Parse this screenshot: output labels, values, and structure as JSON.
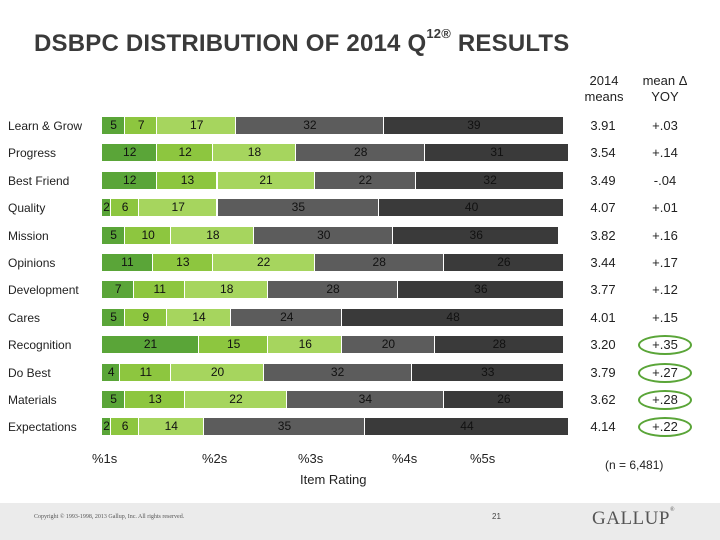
{
  "page": {
    "title": "DSBPC DISTRIBUTION OF 2014 Q",
    "title_sup": "12",
    "title_reg": "®",
    "title_end": " RESULTS",
    "col_means": "2014 means",
    "col_yoy": "mean Δ YOY",
    "xlabel": "Item Rating",
    "n_note": "(n = 6,481)",
    "copyright": "Copyright © 1993-1998, 2013 Gallup, Inc. All rights reserved.",
    "page_number": "21",
    "logo": "GALLUP",
    "logo_mark": "®"
  },
  "colors": {
    "s1": "#5aa538",
    "s2": "#8dc63f",
    "s3": "#a6d55e",
    "s4": "#5c5c5c",
    "s5": "#3a3a3a",
    "highlight": "#5aa538"
  },
  "chart_data": {
    "type": "bar",
    "stacked": true,
    "orientation": "horizontal",
    "series_names": [
      "%1s",
      "%2s",
      "%3s",
      "%4s",
      "%5s"
    ],
    "x_tick_labels": [
      "%1s",
      "%2s",
      "%3s",
      "%4s",
      "%5s"
    ],
    "xlabel": "Item Rating",
    "rows": [
      {
        "label": "Learn & Grow",
        "values": [
          5,
          7,
          17,
          32,
          39
        ],
        "mean": "3.91",
        "yoy": "+.03",
        "highlight": false
      },
      {
        "label": "Progress",
        "values": [
          12,
          12,
          18,
          28,
          31
        ],
        "mean": "3.54",
        "yoy": "+.14",
        "highlight": false
      },
      {
        "label": "Best Friend",
        "values": [
          12,
          13,
          21,
          22,
          32
        ],
        "mean": "3.49",
        "yoy": "-.04",
        "highlight": false
      },
      {
        "label": "Quality",
        "values": [
          2,
          6,
          17,
          35,
          40
        ],
        "mean": "4.07",
        "yoy": "+.01",
        "highlight": false
      },
      {
        "label": "Mission",
        "values": [
          5,
          10,
          18,
          30,
          36
        ],
        "mean": "3.82",
        "yoy": "+.16",
        "highlight": false
      },
      {
        "label": "Opinions",
        "values": [
          11,
          13,
          22,
          28,
          26
        ],
        "mean": "3.44",
        "yoy": "+.17",
        "highlight": false
      },
      {
        "label": "Development",
        "values": [
          7,
          11,
          18,
          28,
          36
        ],
        "mean": "3.77",
        "yoy": "+.12",
        "highlight": false
      },
      {
        "label": "Cares",
        "values": [
          5,
          9,
          14,
          24,
          48
        ],
        "mean": "4.01",
        "yoy": "+.15",
        "highlight": false
      },
      {
        "label": "Recognition",
        "values": [
          21,
          15,
          16,
          20,
          28
        ],
        "mean": "3.20",
        "yoy": "+.35",
        "highlight": true
      },
      {
        "label": "Do Best",
        "values": [
          4,
          11,
          20,
          32,
          33
        ],
        "mean": "3.79",
        "yoy": "+.27",
        "highlight": true
      },
      {
        "label": "Materials",
        "values": [
          5,
          13,
          22,
          34,
          26
        ],
        "mean": "3.62",
        "yoy": "+.28",
        "highlight": true
      },
      {
        "label": "Expectations",
        "values": [
          2,
          6,
          14,
          35,
          44
        ],
        "mean": "4.14",
        "yoy": "+.22",
        "highlight": true
      }
    ]
  }
}
